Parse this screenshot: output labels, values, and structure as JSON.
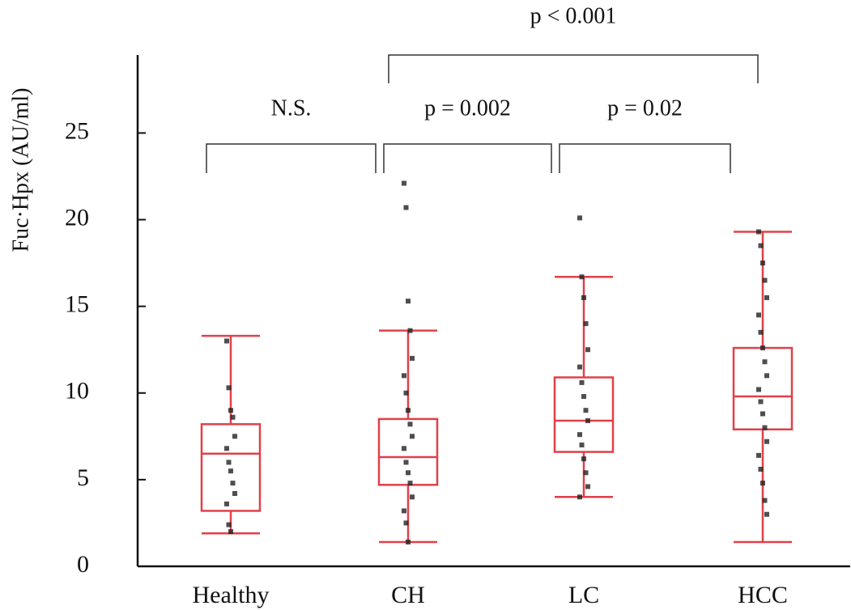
{
  "chart_data": {
    "type": "box",
    "y_label": "Fuc·Hpx (AU/ml)",
    "categories": [
      "Healthy",
      "CH",
      "LC",
      "HCC"
    ],
    "color": "#e0404a",
    "point_color": "#222222",
    "boxes": [
      {
        "min": 1.9,
        "q1": 3.2,
        "median": 6.5,
        "q3": 8.2,
        "max": 13.3
      },
      {
        "min": 1.4,
        "q1": 4.7,
        "median": 6.3,
        "q3": 8.5,
        "max": 13.6
      },
      {
        "min": 4.0,
        "q1": 6.6,
        "median": 8.4,
        "q3": 10.9,
        "max": 16.7
      },
      {
        "min": 1.4,
        "q1": 7.9,
        "median": 9.8,
        "q3": 12.6,
        "max": 19.3
      }
    ],
    "points": [
      [
        13.0,
        10.3,
        9.0,
        8.6,
        7.5,
        6.8,
        6.0,
        5.5,
        4.8,
        4.2,
        3.6,
        2.4,
        2.0
      ],
      [
        22.1,
        20.7,
        15.3,
        13.6,
        12.0,
        11.0,
        10.0,
        9.0,
        8.2,
        7.5,
        6.8,
        6.0,
        5.4,
        4.8,
        4.0,
        3.2,
        2.5,
        1.4
      ],
      [
        20.1,
        16.7,
        15.5,
        14.0,
        12.5,
        11.5,
        10.6,
        9.8,
        9.0,
        8.4,
        7.6,
        7.0,
        6.2,
        5.4,
        4.6,
        4.0
      ],
      [
        19.3,
        18.5,
        17.5,
        16.5,
        15.5,
        14.5,
        13.5,
        12.6,
        11.8,
        11.0,
        10.2,
        9.5,
        8.8,
        8.0,
        7.2,
        6.4,
        5.6,
        4.8,
        3.8,
        3.0
      ]
    ],
    "ylim": [
      0,
      29.5
    ],
    "yticks": [
      0,
      5,
      10,
      15,
      20,
      25
    ],
    "annotations": [
      {
        "text": "N.S.",
        "groups": [
          "Healthy",
          "CH"
        ]
      },
      {
        "text": "p = 0.002",
        "groups": [
          "CH",
          "LC"
        ]
      },
      {
        "text": "p = 0.02",
        "groups": [
          "LC",
          "HCC"
        ]
      },
      {
        "text": "p < 0.001",
        "groups": [
          "CH",
          "HCC"
        ]
      }
    ]
  }
}
